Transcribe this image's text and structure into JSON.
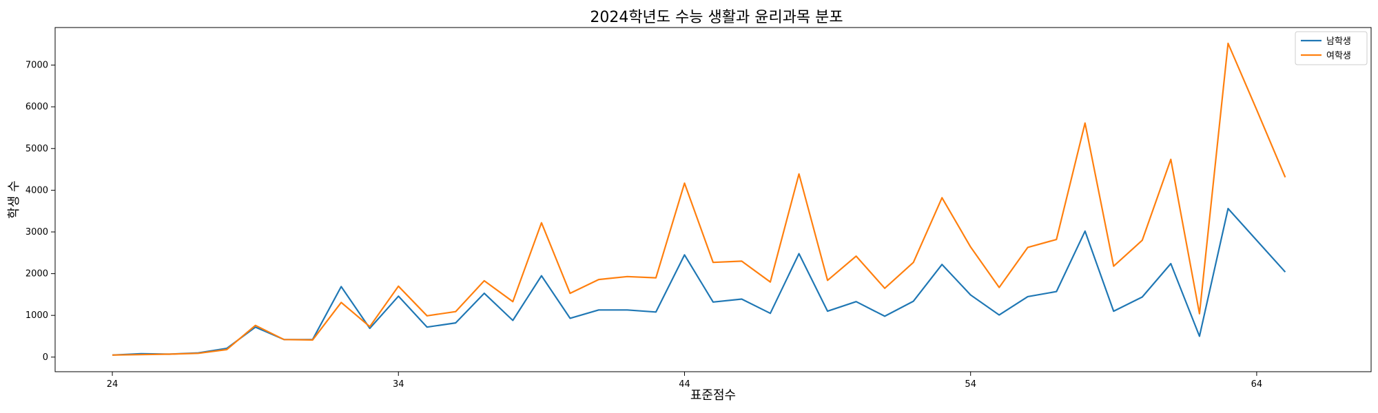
{
  "chart_data": {
    "type": "line",
    "title": "2024학년도 수능 생활과 윤리과목 분포",
    "xlabel": "표준점수",
    "ylabel": "학생 수",
    "x": [
      24,
      25,
      26,
      27,
      28,
      29,
      30,
      31,
      32,
      33,
      34,
      35,
      36,
      37,
      38,
      39,
      40,
      41,
      42,
      43,
      44,
      45,
      46,
      47,
      48,
      49,
      50,
      51,
      52,
      53,
      54,
      55,
      56,
      57,
      58,
      59,
      60,
      61,
      62,
      63,
      64,
      65
    ],
    "xlim": [
      22,
      68
    ],
    "ylim": [
      -350,
      7900
    ],
    "xticks": [
      24,
      34,
      44,
      54,
      64
    ],
    "yticks": [
      0,
      1000,
      2000,
      3000,
      4000,
      5000,
      6000,
      7000
    ],
    "grid": false,
    "legend_position": "top-right",
    "series": [
      {
        "name": "남학생",
        "color": "#1f77b4",
        "values": [
          50,
          80,
          70,
          100,
          210,
          720,
          420,
          420,
          1690,
          690,
          1460,
          720,
          820,
          1530,
          880,
          1950,
          930,
          1130,
          1130,
          1080,
          2450,
          1320,
          1390,
          1050,
          2480,
          1100,
          1330,
          980,
          1340,
          2220,
          1490,
          1010,
          1450,
          1570,
          3020,
          1100,
          1440,
          2240,
          500,
          3560,
          2800,
          2040
        ]
      },
      {
        "name": "여학생",
        "color": "#ff7f0e",
        "values": [
          50,
          60,
          70,
          90,
          180,
          760,
          420,
          410,
          1310,
          730,
          1700,
          990,
          1090,
          1830,
          1330,
          3220,
          1530,
          1860,
          1930,
          1900,
          4170,
          2270,
          2300,
          1800,
          4390,
          1840,
          2420,
          1650,
          2270,
          3820,
          2640,
          1670,
          2630,
          2820,
          5610,
          2180,
          2800,
          4740,
          1040,
          7520,
          5930,
          4310
        ]
      }
    ]
  }
}
